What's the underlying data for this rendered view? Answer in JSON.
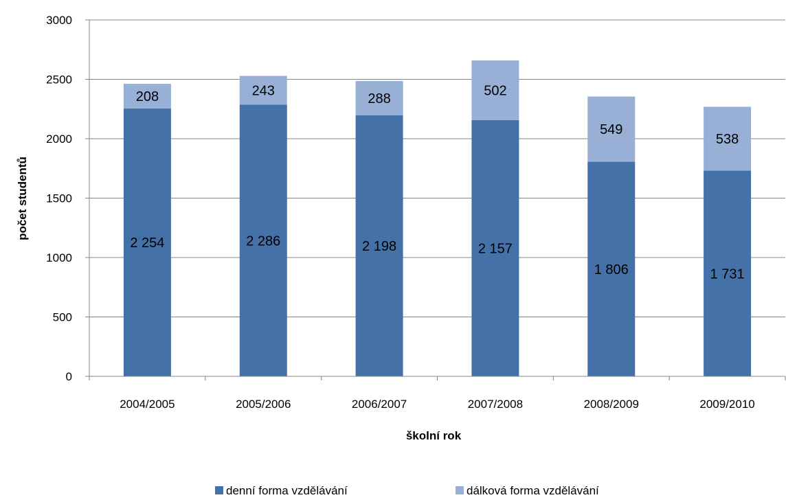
{
  "chart_data": {
    "type": "bar",
    "stacked": true,
    "title": "",
    "xlabel": "školní rok",
    "ylabel": "počet studentů",
    "ylim": [
      0,
      3000
    ],
    "yticks": [
      0,
      500,
      1000,
      1500,
      2000,
      2500,
      3000
    ],
    "grid": "horizontal",
    "legend_position": "bottom",
    "categories": [
      "2004/2005",
      "2005/2006",
      "2006/2007",
      "2007/2008",
      "2008/2009",
      "2009/2010"
    ],
    "series": [
      {
        "name": "denní forma vzdělávání",
        "color": "#4472A8",
        "values": [
          2254,
          2286,
          2198,
          2157,
          1806,
          1731
        ],
        "labels": [
          "2 254",
          "2 286",
          "2 198",
          "2 157",
          "1 806",
          "1 731"
        ]
      },
      {
        "name": "dálková forma vzdělávání",
        "color": "#98B0D6",
        "values": [
          208,
          243,
          288,
          502,
          549,
          538
        ],
        "labels": [
          "208",
          "243",
          "288",
          "502",
          "549",
          "538"
        ]
      }
    ]
  }
}
